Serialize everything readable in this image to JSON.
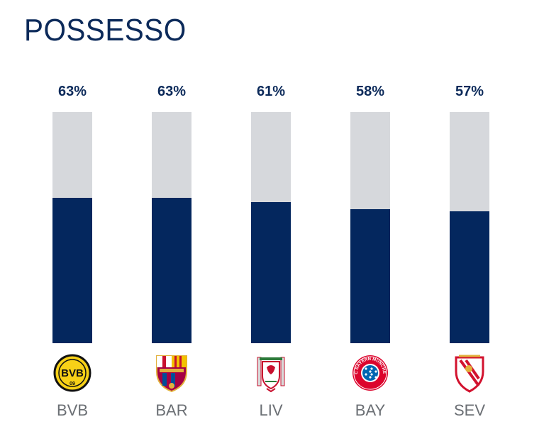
{
  "chart_data": {
    "type": "bar",
    "title": "POSSESSO",
    "categories": [
      "BVB",
      "BAR",
      "LIV",
      "BAY",
      "SEV"
    ],
    "values": [
      63,
      63,
      61,
      58,
      57
    ],
    "value_labels": [
      "63%",
      "63%",
      "61%",
      "58%",
      "57%"
    ],
    "ylim": [
      0,
      100
    ],
    "unit": "%",
    "grid": false,
    "legend": "none",
    "colors": {
      "bar": "#04275e",
      "track": "#d6d8dc",
      "text": "#0c2a5a",
      "category_text": "#6b6f74"
    },
    "logos": [
      "bvb-crest-icon",
      "barcelona-crest-icon",
      "liverpool-crest-icon",
      "bayern-crest-icon",
      "sevilla-crest-icon"
    ],
    "logo_text": {
      "bvb": "BVB",
      "bvb_number": "09",
      "bayern": "FC BAYERN MÜNCHEN"
    }
  }
}
